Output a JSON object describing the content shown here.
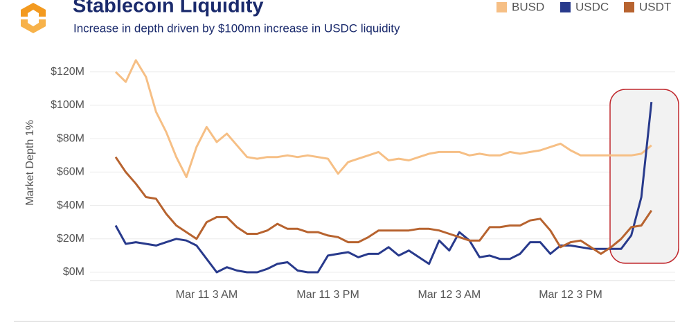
{
  "chart_data": {
    "type": "line",
    "title": "Stablecoin Liquidity",
    "subtitle": "Increase in depth driven by $100mn increase in USDC liquidity",
    "y_label": "Market Depth 1%",
    "categories": [
      null,
      null,
      null,
      null,
      null,
      null,
      null,
      null,
      null,
      "Mar 11 3 AM",
      null,
      null,
      null,
      null,
      null,
      null,
      null,
      null,
      null,
      null,
      null,
      "Mar 11 3 PM",
      null,
      null,
      null,
      null,
      null,
      null,
      null,
      null,
      null,
      null,
      null,
      "Mar 12 3 AM",
      null,
      null,
      null,
      null,
      null,
      null,
      null,
      null,
      null,
      null,
      null,
      "Mar 12 3 PM",
      null,
      null,
      null,
      null,
      null,
      null,
      null,
      null
    ],
    "series": [
      {
        "name": "BUSD",
        "color": "#f6bf85",
        "values": [
          120,
          114,
          127,
          117,
          96,
          84,
          69,
          57,
          75,
          87,
          78,
          83,
          76,
          69,
          68,
          69,
          69,
          70,
          69,
          70,
          69,
          68,
          59,
          66,
          68,
          70,
          72,
          67,
          68,
          67,
          69,
          71,
          72,
          72,
          72,
          70,
          71,
          70,
          70,
          72,
          71,
          72,
          73,
          75,
          77,
          73,
          70,
          70,
          70,
          70,
          70,
          70,
          71,
          76
        ]
      },
      {
        "name": "USDC",
        "color": "#283a8c",
        "values": [
          28,
          17,
          18,
          17,
          16,
          18,
          20,
          19,
          16,
          8,
          0,
          3,
          1,
          0,
          0,
          2,
          5,
          6,
          1,
          0,
          0,
          10,
          11,
          12,
          9,
          11,
          11,
          15,
          10,
          13,
          9,
          5,
          19,
          13,
          24,
          19,
          9,
          10,
          8,
          8,
          11,
          18,
          18,
          11,
          16,
          16,
          15,
          14,
          14,
          14,
          14,
          22,
          45,
          102
        ]
      },
      {
        "name": "USDT",
        "color": "#b7632f",
        "values": [
          69,
          60,
          53,
          45,
          44,
          35,
          28,
          24,
          20,
          30,
          33,
          33,
          27,
          23,
          23,
          25,
          29,
          26,
          26,
          24,
          24,
          22,
          21,
          18,
          18,
          21,
          25,
          25,
          25,
          25,
          26,
          26,
          25,
          23,
          21,
          19,
          19,
          27,
          27,
          28,
          28,
          31,
          32,
          25,
          15,
          18,
          19,
          15,
          11,
          15,
          20,
          27,
          28,
          37
        ]
      }
    ],
    "ylim": [
      -5,
      128
    ],
    "yticks": [
      {
        "value": 0,
        "label": "$0M"
      },
      {
        "value": 20,
        "label": "$20M"
      },
      {
        "value": 40,
        "label": "$40M"
      },
      {
        "value": 60,
        "label": "$60M"
      },
      {
        "value": 80,
        "label": "$80M"
      },
      {
        "value": 100,
        "label": "$100M"
      },
      {
        "value": 120,
        "label": "$120M"
      }
    ],
    "grid": true
  }
}
